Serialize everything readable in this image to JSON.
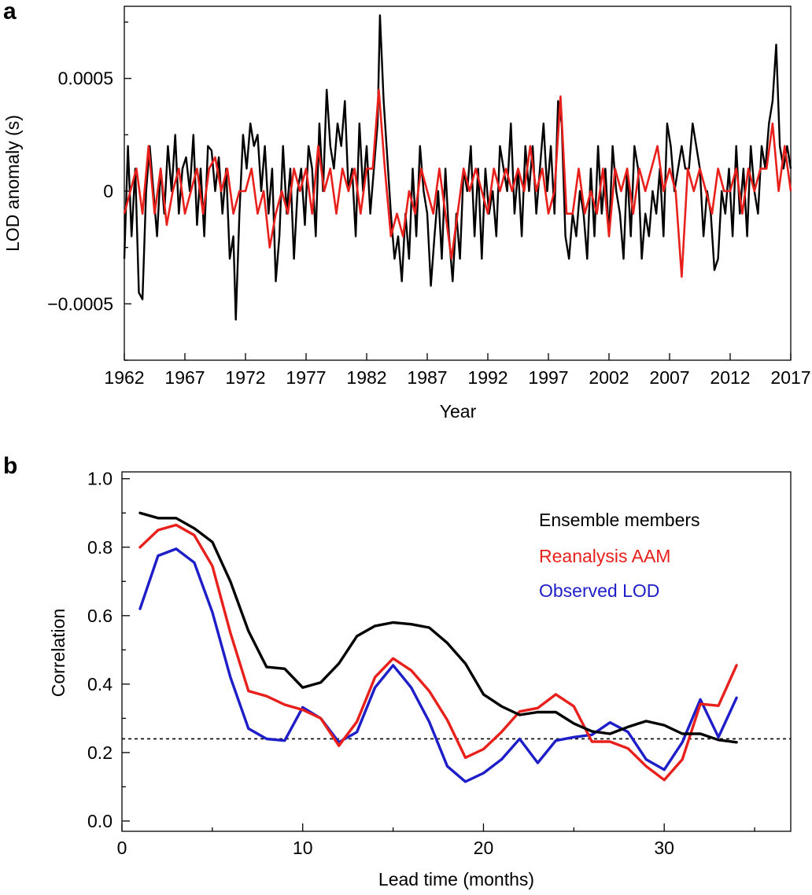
{
  "chart_data": [
    {
      "panel": "a",
      "type": "line",
      "xlabel": "Year",
      "ylabel": "LOD anomaly (s)",
      "xlim": [
        1962,
        2017
      ],
      "ylim": [
        -0.00075,
        0.00082
      ],
      "x_ticks": [
        1962,
        1967,
        1972,
        1977,
        1982,
        1987,
        1992,
        1997,
        2002,
        2007,
        2012,
        2017
      ],
      "x_tick_labels": [
        "1962",
        "1967",
        "1972",
        "1977",
        "1982",
        "1987",
        "1992",
        "1997",
        "2002",
        "2007",
        "2012",
        "2017"
      ],
      "y_ticks": [
        -0.0005,
        0,
        0.0005
      ],
      "y_tick_labels": [
        "−0.0005",
        "0",
        "0.0005"
      ],
      "grid": false,
      "legend": "none",
      "series": [
        {
          "color": "#000000",
          "x": [
            1962.0,
            1962.3,
            1962.6,
            1962.9,
            1963.2,
            1963.5,
            1963.8,
            1964.1,
            1964.4,
            1964.7,
            1965.0,
            1965.3,
            1965.6,
            1965.9,
            1966.2,
            1966.5,
            1966.8,
            1967.1,
            1967.4,
            1967.7,
            1968.0,
            1968.3,
            1968.6,
            1968.9,
            1969.2,
            1969.5,
            1969.8,
            1970.1,
            1970.4,
            1970.7,
            1971.0,
            1971.2,
            1971.5,
            1971.8,
            1972.1,
            1972.4,
            1972.7,
            1973.0,
            1973.3,
            1973.6,
            1973.9,
            1974.2,
            1974.5,
            1974.8,
            1975.1,
            1975.4,
            1975.7,
            1976.0,
            1976.3,
            1976.6,
            1976.9,
            1977.2,
            1977.5,
            1977.8,
            1978.1,
            1978.4,
            1978.7,
            1979.0,
            1979.3,
            1979.6,
            1979.9,
            1980.2,
            1980.5,
            1980.8,
            1981.1,
            1981.4,
            1981.7,
            1982.0,
            1982.3,
            1982.6,
            1982.9,
            1983.1,
            1983.4,
            1983.7,
            1984.0,
            1984.3,
            1984.6,
            1984.9,
            1985.2,
            1985.5,
            1985.8,
            1986.1,
            1986.4,
            1986.7,
            1987.0,
            1987.3,
            1987.6,
            1987.9,
            1988.2,
            1988.5,
            1988.8,
            1989.1,
            1989.4,
            1989.7,
            1990.0,
            1990.3,
            1990.6,
            1990.9,
            1991.2,
            1991.5,
            1991.8,
            1992.1,
            1992.4,
            1992.7,
            1993.0,
            1993.3,
            1993.6,
            1993.9,
            1994.2,
            1994.5,
            1994.8,
            1995.1,
            1995.4,
            1995.7,
            1996.0,
            1996.3,
            1996.6,
            1996.9,
            1997.2,
            1997.5,
            1997.8,
            1998.1,
            1998.4,
            1998.7,
            1999.0,
            1999.3,
            1999.6,
            1999.9,
            2000.2,
            2000.5,
            2000.8,
            2001.1,
            2001.4,
            2001.7,
            2002.0,
            2002.3,
            2002.6,
            2002.9,
            2003.2,
            2003.5,
            2003.8,
            2004.1,
            2004.4,
            2004.7,
            2005.0,
            2005.3,
            2005.6,
            2005.9,
            2006.2,
            2006.5,
            2006.8,
            2007.1,
            2007.4,
            2007.7,
            2008.0,
            2008.3,
            2008.6,
            2008.9,
            2009.2,
            2009.5,
            2009.8,
            2010.1,
            2010.4,
            2010.7,
            2011.0,
            2011.3,
            2011.6,
            2011.9,
            2012.2,
            2012.5,
            2012.8,
            2013.1,
            2013.4,
            2013.7,
            2014.0,
            2014.3,
            2014.6,
            2014.9,
            2015.2,
            2015.5,
            2015.8,
            2016.1,
            2016.4,
            2016.7,
            2017.0
          ],
          "y": [
            -0.0003,
            0.0002,
            -0.0002,
            0.0001,
            -0.00045,
            -0.00048,
            0.0,
            0.0002,
            0.0,
            -0.0002,
            0.0001,
            -0.0001,
            0.0002,
            0.0,
            0.00025,
            -0.0001,
            0.0001,
            0.00015,
            0.0,
            0.00025,
            -0.00015,
            0.0001,
            -0.0002,
            0.0002,
            0.00018,
            0.0,
            0.00015,
            -0.0001,
            0.0001,
            -0.0003,
            -0.0002,
            -0.00057,
            -0.0001,
            0.00025,
            0.0001,
            0.0003,
            0.0002,
            0.00025,
            0.0,
            0.0002,
            -0.0001,
            0.0001,
            -0.0004,
            -0.0002,
            0.0002,
            -0.0001,
            0.0001,
            -0.0003,
            0.0,
            0.0001,
            -0.00015,
            0.0002,
            0.0001,
            -0.0002,
            0.0003,
            0.0,
            0.00045,
            0.0002,
            0.0001,
            0.0003,
            0.0002,
            0.0004,
            0.0,
            0.0001,
            -0.0002,
            0.0003,
            0.0,
            0.0002,
            -0.0001,
            0.0001,
            0.0003,
            0.00078,
            0.0004,
            0.00015,
            -0.0001,
            -0.0003,
            -0.0002,
            -0.0004,
            -0.0001,
            -0.0003,
            0.0001,
            -0.0002,
            0.0002,
            0.0,
            -0.0001,
            -0.00042,
            -0.0002,
            0.0,
            -0.0003,
            0.0001,
            -0.0002,
            -0.0004,
            -0.0001,
            -0.0003,
            0.0001,
            0.0,
            0.0002,
            -0.0002,
            0.0001,
            -0.0003,
            0.0001,
            -0.0001,
            0.0,
            -0.0002,
            0.0002,
            0.0001,
            0.0,
            0.0003,
            -0.0001,
            0.0001,
            -0.0002,
            0.0002,
            0.0,
            0.0002,
            -0.0001,
            0.0001,
            0.0003,
            0.0,
            0.0002,
            -0.0001,
            0.0004,
            0.0003,
            -0.0002,
            -0.0003,
            -0.0001,
            -0.0002,
            0.0,
            -0.0001,
            -0.0003,
            0.0001,
            -0.0002,
            0.0002,
            -0.0001,
            0.0001,
            -0.0002,
            0.0002,
            0.0,
            -0.0001,
            -0.0003,
            0.0001,
            -0.0002,
            0.0002,
            0.0001,
            -0.0003,
            -0.0001,
            -0.0002,
            0.0,
            -0.0001,
            0.0001,
            -0.0002,
            0.0003,
            0.0002,
            0.0,
            0.0001,
            0.0002,
            0.0001,
            0.0001,
            0.0003,
            0.0002,
            0.0001,
            -0.0002,
            0.0,
            -0.0001,
            -0.00035,
            -0.0003,
            0.0,
            -0.0001,
            0.0001,
            -0.0002,
            0.0002,
            -0.0001,
            0.0001,
            -0.0002,
            0.0002,
            0.0,
            -0.0001,
            0.0002,
            0.0001,
            0.0003,
            0.0004,
            0.00065,
            0.0002,
            0.0001,
            0.0002,
            0.0001
          ]
        },
        {
          "color": "#e8201c",
          "x": [
            1962.0,
            1962.5,
            1963.0,
            1963.5,
            1964.0,
            1964.5,
            1965.0,
            1965.5,
            1966.0,
            1966.5,
            1967.0,
            1967.5,
            1968.0,
            1968.5,
            1969.0,
            1969.5,
            1970.0,
            1970.5,
            1971.0,
            1971.5,
            1972.0,
            1972.5,
            1973.0,
            1973.5,
            1974.0,
            1974.5,
            1975.0,
            1975.5,
            1976.0,
            1976.5,
            1977.0,
            1977.5,
            1978.0,
            1978.5,
            1979.0,
            1979.5,
            1980.0,
            1980.5,
            1981.0,
            1981.5,
            1982.0,
            1982.5,
            1983.0,
            1983.5,
            1984.0,
            1984.5,
            1985.0,
            1985.5,
            1986.0,
            1986.5,
            1987.0,
            1987.5,
            1988.0,
            1988.5,
            1989.0,
            1989.5,
            1990.0,
            1990.5,
            1991.0,
            1991.5,
            1992.0,
            1992.5,
            1993.0,
            1993.5,
            1994.0,
            1994.5,
            1995.0,
            1995.5,
            1996.0,
            1996.5,
            1997.0,
            1997.5,
            1998.0,
            1998.5,
            1999.0,
            1999.5,
            2000.0,
            2000.5,
            2001.0,
            2001.5,
            2002.0,
            2002.5,
            2003.0,
            2003.5,
            2004.0,
            2004.5,
            2005.0,
            2005.5,
            2006.0,
            2006.5,
            2007.0,
            2007.5,
            2008.0,
            2008.5,
            2009.0,
            2009.5,
            2010.0,
            2010.5,
            2011.0,
            2011.5,
            2012.0,
            2012.5,
            2013.0,
            2013.5,
            2014.0,
            2014.5,
            2015.0,
            2015.5,
            2016.0,
            2016.5,
            2017.0
          ],
          "y": [
            -0.0001,
            0.0,
            0.0001,
            -0.0001,
            0.0002,
            -0.0001,
            0.0001,
            -0.00015,
            0.0,
            0.0001,
            -0.0001,
            0.0,
            0.0001,
            -0.0001,
            0.0001,
            0.00015,
            0.0,
            0.0001,
            -0.0001,
            0.0,
            0.0,
            0.0001,
            -0.0001,
            0.0,
            -0.00025,
            -0.0001,
            0.0,
            -0.0001,
            0.0001,
            0.0,
            0.0001,
            -0.0001,
            0.0002,
            0.0,
            0.0001,
            -0.0001,
            0.0001,
            0.0,
            0.0001,
            -0.0001,
            0.0001,
            0.0001,
            0.00045,
            0.0001,
            -0.0002,
            -0.0001,
            -0.0002,
            0.0,
            -0.0001,
            0.0001,
            0.0,
            -0.0001,
            0.0001,
            -0.0001,
            -0.0003,
            -0.0001,
            0.0001,
            0.0,
            0.0001,
            0.0,
            -0.0001,
            0.0001,
            0.0,
            0.0001,
            0.0,
            0.0001,
            0.0,
            0.0002,
            0.0,
            0.0001,
            -0.0001,
            0.0,
            0.00042,
            -0.0001,
            -0.0001,
            0.0001,
            -0.0001,
            0.0,
            -0.0001,
            0.0001,
            -0.0002,
            0.0001,
            0.0,
            0.0001,
            -0.0001,
            0.0001,
            0.0,
            0.0001,
            0.0002,
            0.0,
            0.0001,
            0.0,
            -0.00038,
            0.0001,
            0.0,
            0.0001,
            0.0,
            -0.0001,
            0.0001,
            0.0,
            0.0,
            0.0001,
            -0.0001,
            0.0001,
            0.0,
            0.0001,
            0.0001,
            0.0003,
            0.0,
            0.0002,
            0.0
          ]
        }
      ]
    },
    {
      "panel": "b",
      "type": "line",
      "xlabel": "Lead time (months)",
      "ylabel": "Correlation",
      "xlim": [
        0,
        37
      ],
      "ylim": [
        -0.03,
        1.02
      ],
      "x_ticks": [
        0,
        10,
        20,
        30
      ],
      "x_tick_labels": [
        "0",
        "10",
        "20",
        "30"
      ],
      "y_ticks": [
        0.0,
        0.2,
        0.4,
        0.6,
        0.8,
        1.0
      ],
      "y_tick_labels": [
        "0.0",
        "0.2",
        "0.4",
        "0.6",
        "0.8",
        "1.0"
      ],
      "grid": false,
      "legend": "top-right",
      "x": [
        1,
        2,
        3,
        4,
        5,
        6,
        7,
        8,
        9,
        10,
        11,
        12,
        13,
        14,
        15,
        16,
        17,
        18,
        19,
        20,
        21,
        22,
        23,
        24,
        25,
        26,
        27,
        28,
        29,
        30,
        31,
        32,
        33,
        34
      ],
      "series": [
        {
          "name": "Ensemble members",
          "color": "#000000",
          "values": [
            0.9,
            0.885,
            0.885,
            0.855,
            0.815,
            0.7,
            0.555,
            0.45,
            0.445,
            0.39,
            0.405,
            0.46,
            0.54,
            0.57,
            0.58,
            0.575,
            0.565,
            0.52,
            0.46,
            0.37,
            0.335,
            0.31,
            0.318,
            0.318,
            0.285,
            0.262,
            0.255,
            0.275,
            0.292,
            0.28,
            0.255,
            0.255,
            0.237,
            0.23
          ]
        },
        {
          "name": "Reanalysis AAM",
          "color": "#e8201c",
          "values": [
            0.8,
            0.85,
            0.865,
            0.835,
            0.745,
            0.55,
            0.38,
            0.365,
            0.34,
            0.325,
            0.3,
            0.22,
            0.29,
            0.42,
            0.475,
            0.44,
            0.38,
            0.295,
            0.185,
            0.21,
            0.26,
            0.32,
            0.33,
            0.37,
            0.335,
            0.232,
            0.232,
            0.212,
            0.16,
            0.12,
            0.18,
            0.342,
            0.337,
            0.455
          ]
        },
        {
          "name": "Observed LOD",
          "color": "#1e1ec8",
          "values": [
            0.62,
            0.775,
            0.795,
            0.755,
            0.61,
            0.42,
            0.27,
            0.24,
            0.235,
            0.332,
            0.3,
            0.23,
            0.26,
            0.39,
            0.455,
            0.39,
            0.29,
            0.16,
            0.115,
            0.14,
            0.18,
            0.24,
            0.17,
            0.235,
            0.245,
            0.252,
            0.288,
            0.26,
            0.18,
            0.15,
            0.23,
            0.355,
            0.245,
            0.36
          ]
        }
      ],
      "reference_line": {
        "value": 0.24,
        "style": "dotted",
        "color": "#000000"
      }
    }
  ]
}
